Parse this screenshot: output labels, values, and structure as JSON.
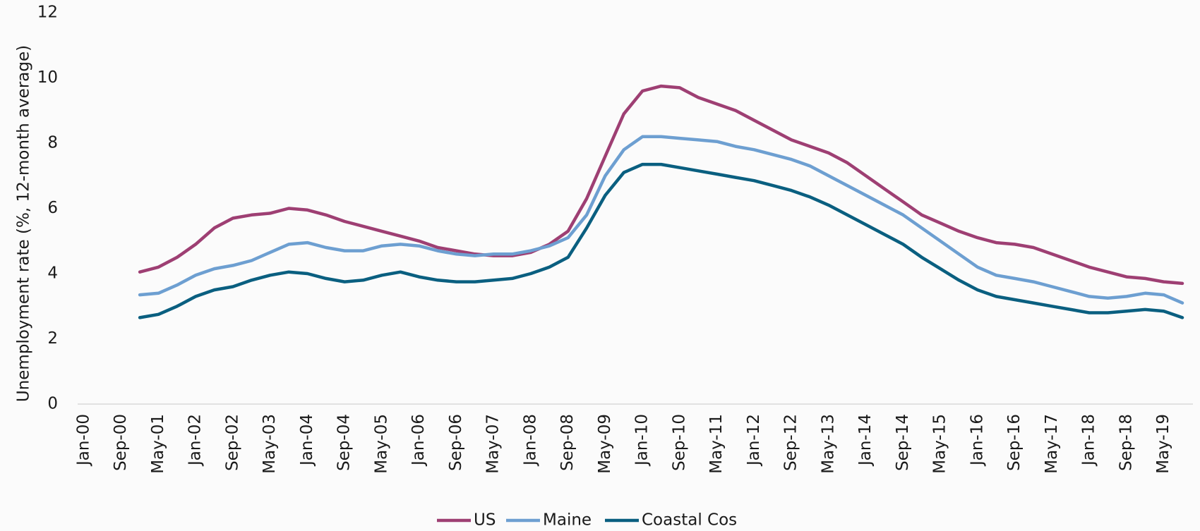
{
  "chart_data": {
    "type": "line",
    "y_label": "Unemployment rate (%, 12-month average)",
    "categories": [
      "Jan-00",
      null,
      "Sep-00",
      null,
      "May-01",
      null,
      "Jan-02",
      null,
      "Sep-02",
      null,
      "May-03",
      null,
      "Jan-04",
      null,
      "Sep-04",
      null,
      "May-05",
      null,
      "Jan-06",
      null,
      "Sep-06",
      null,
      "May-07",
      null,
      "Jan-08",
      null,
      "Sep-08",
      null,
      "May-09",
      null,
      "Jan-10",
      null,
      "Sep-10",
      null,
      "May-11",
      null,
      "Jan-12",
      null,
      "Sep-12",
      null,
      "May-13",
      null,
      "Jan-14",
      null,
      "Sep-14",
      null,
      "May-15",
      null,
      "Jan-16",
      null,
      "Sep-16",
      null,
      "May-17",
      null,
      "Jan-18",
      null,
      "Sep-18",
      null,
      "May-19",
      null
    ],
    "series": [
      {
        "name": "US",
        "color": "#9e3f73",
        "values": [
          null,
          null,
          null,
          4.05,
          4.2,
          4.5,
          4.9,
          5.4,
          5.7,
          5.8,
          5.85,
          6.0,
          5.95,
          5.8,
          5.6,
          5.45,
          5.3,
          5.15,
          5.0,
          4.8,
          4.7,
          4.6,
          4.55,
          4.55,
          4.65,
          4.9,
          5.3,
          6.3,
          7.6,
          8.9,
          9.6,
          9.75,
          9.7,
          9.4,
          9.2,
          9.0,
          8.7,
          8.4,
          8.1,
          7.9,
          7.7,
          7.4,
          7.0,
          6.6,
          6.2,
          5.8,
          5.55,
          5.3,
          5.1,
          4.95,
          4.9,
          4.8,
          4.6,
          4.4,
          4.2,
          4.05,
          3.9,
          3.85,
          3.75,
          3.7
        ]
      },
      {
        "name": "Maine",
        "color": "#6d9fd1",
        "values": [
          null,
          null,
          null,
          3.35,
          3.4,
          3.65,
          3.95,
          4.15,
          4.25,
          4.4,
          4.65,
          4.9,
          4.95,
          4.8,
          4.7,
          4.7,
          4.85,
          4.9,
          4.85,
          4.7,
          4.6,
          4.55,
          4.6,
          4.6,
          4.7,
          4.85,
          5.1,
          5.8,
          7.0,
          7.8,
          8.2,
          8.2,
          8.15,
          8.1,
          8.05,
          7.9,
          7.8,
          7.65,
          7.5,
          7.3,
          7.0,
          6.7,
          6.4,
          6.1,
          5.8,
          5.4,
          5.0,
          4.6,
          4.2,
          3.95,
          3.85,
          3.75,
          3.6,
          3.45,
          3.3,
          3.25,
          3.3,
          3.4,
          3.35,
          3.1
        ]
      },
      {
        "name": "Coastal Cos",
        "color": "#0a5f80",
        "values": [
          null,
          null,
          null,
          2.65,
          2.75,
          3.0,
          3.3,
          3.5,
          3.6,
          3.8,
          3.95,
          4.05,
          4.0,
          3.85,
          3.75,
          3.8,
          3.95,
          4.05,
          3.9,
          3.8,
          3.75,
          3.75,
          3.8,
          3.85,
          4.0,
          4.2,
          4.5,
          5.4,
          6.4,
          7.1,
          7.35,
          7.35,
          7.25,
          7.15,
          7.05,
          6.95,
          6.85,
          6.7,
          6.55,
          6.35,
          6.1,
          5.8,
          5.5,
          5.2,
          4.9,
          4.5,
          4.15,
          3.8,
          3.5,
          3.3,
          3.2,
          3.1,
          3.0,
          2.9,
          2.8,
          2.8,
          2.85,
          2.9,
          2.85,
          2.65
        ]
      }
    ],
    "ylim": [
      0,
      12
    ],
    "yticks": [
      0,
      2,
      4,
      6,
      8,
      10,
      12
    ],
    "grid": false,
    "legend": "bottom"
  }
}
